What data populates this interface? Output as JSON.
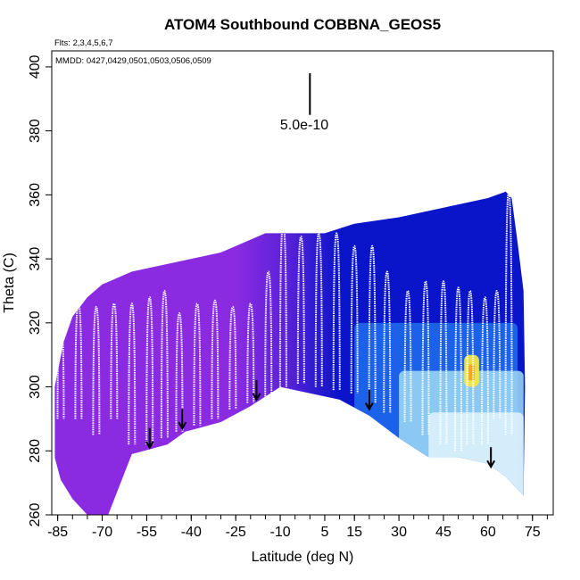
{
  "chart_data": {
    "type": "heatmap",
    "title": "ATOM4 Southbound COBBNA_GEOS5",
    "xlabel": "Latitude (deg N)",
    "ylabel": "Theta (C)",
    "flights_note": "Flts: 2,3,4,5,6,7",
    "dates_note": "MMDD: 0427,0429,0501,0503,0506,0509",
    "scale_label": "5.0e-10",
    "xlim": [
      -87,
      82
    ],
    "ylim": [
      260,
      405
    ],
    "x_ticks": [
      -85,
      -70,
      -55,
      -40,
      -25,
      -10,
      5,
      15,
      30,
      45,
      60,
      75
    ],
    "x_tick_labels": [
      "-85",
      "-70",
      "-55",
      "-40",
      "-25",
      "-10",
      "5",
      "15",
      "30",
      "45",
      "60",
      "75"
    ],
    "x_minor_step": 5,
    "y_ticks": [
      260,
      280,
      300,
      320,
      340,
      360,
      380,
      400
    ],
    "y_tick_labels": [
      "260",
      "280",
      "300",
      "320",
      "340",
      "360",
      "380",
      "400"
    ],
    "grid": false,
    "colors": {
      "violet": "#8a2be2",
      "navy": "#0a14c8",
      "blue": "#1e6ef0",
      "sky": "#9fdcf5",
      "pale": "#dff3fb",
      "yellow": "#f5e642",
      "orange": "#f5a623",
      "track": "#ffffff",
      "arrow": "#000000"
    },
    "field_top_theta": [
      [
        -86,
        300
      ],
      [
        -83,
        314
      ],
      [
        -80,
        322
      ],
      [
        -75,
        328
      ],
      [
        -70,
        332
      ],
      [
        -60,
        336
      ],
      [
        -50,
        338
      ],
      [
        -40,
        340
      ],
      [
        -30,
        342
      ],
      [
        -25,
        344
      ],
      [
        -15,
        348
      ],
      [
        -5,
        348
      ],
      [
        5,
        348
      ],
      [
        15,
        351
      ],
      [
        30,
        353
      ],
      [
        45,
        356
      ],
      [
        60,
        359
      ],
      [
        66,
        361
      ],
      [
        68,
        359
      ],
      [
        70,
        345
      ],
      [
        72,
        330
      ],
      [
        72.5,
        300
      ]
    ],
    "field_bottom_theta": [
      [
        -86,
        278
      ],
      [
        -84,
        271
      ],
      [
        -80,
        265
      ],
      [
        -75,
        260
      ],
      [
        -68,
        260
      ],
      [
        -60,
        279
      ],
      [
        -52,
        281
      ],
      [
        -48,
        282
      ],
      [
        -42,
        286
      ],
      [
        -38,
        287
      ],
      [
        -30,
        289
      ],
      [
        -20,
        294
      ],
      [
        -10,
        300
      ],
      [
        0,
        298
      ],
      [
        10,
        296
      ],
      [
        20,
        291
      ],
      [
        30,
        284
      ],
      [
        40,
        278
      ],
      [
        50,
        278
      ],
      [
        60,
        276
      ],
      [
        66,
        272
      ],
      [
        72,
        266
      ],
      [
        72.5,
        300
      ]
    ],
    "color_zones": [
      {
        "color": "violet",
        "from_lat": -86,
        "to_lat": -12
      },
      {
        "color": "navy",
        "from_lat": -12,
        "to_lat": 70
      },
      {
        "color": "blue",
        "from_lat": 15,
        "to_lat": 70,
        "theta_max": 320
      },
      {
        "color": "sky",
        "from_lat": 30,
        "to_lat": 72,
        "theta_max": 305
      },
      {
        "color": "pale",
        "from_lat": 40,
        "to_lat": 72,
        "theta_max": 292
      },
      {
        "color": "yellow",
        "from_lat": 52,
        "to_lat": 57,
        "theta_min": 300,
        "theta_max": 310
      }
    ],
    "profiles": [
      {
        "lat": -84,
        "top": 320,
        "bottom": 290
      },
      {
        "lat": -78,
        "top": 326,
        "bottom": 290
      },
      {
        "lat": -72,
        "top": 325,
        "bottom": 285
      },
      {
        "lat": -66,
        "top": 326,
        "bottom": 290
      },
      {
        "lat": -60,
        "top": 326,
        "bottom": 282
      },
      {
        "lat": -54,
        "top": 328,
        "bottom": 282
      },
      {
        "lat": -49,
        "top": 330,
        "bottom": 284
      },
      {
        "lat": -44,
        "top": 323,
        "bottom": 286
      },
      {
        "lat": -38,
        "top": 326,
        "bottom": 288
      },
      {
        "lat": -32,
        "top": 327,
        "bottom": 290
      },
      {
        "lat": -26,
        "top": 325,
        "bottom": 293
      },
      {
        "lat": -20,
        "top": 326,
        "bottom": 295
      },
      {
        "lat": -14,
        "top": 336,
        "bottom": 297
      },
      {
        "lat": -9,
        "top": 351,
        "bottom": 300
      },
      {
        "lat": -3,
        "top": 347,
        "bottom": 301
      },
      {
        "lat": 3,
        "top": 348,
        "bottom": 300
      },
      {
        "lat": 9,
        "top": 348,
        "bottom": 299
      },
      {
        "lat": 15,
        "top": 344,
        "bottom": 298
      },
      {
        "lat": 21,
        "top": 344,
        "bottom": 295
      },
      {
        "lat": 26,
        "top": 336,
        "bottom": 292
      },
      {
        "lat": 33,
        "top": 330,
        "bottom": 289
      },
      {
        "lat": 39,
        "top": 333,
        "bottom": 285
      },
      {
        "lat": 45,
        "top": 333,
        "bottom": 282
      },
      {
        "lat": 50,
        "top": 331,
        "bottom": 280
      },
      {
        "lat": 54,
        "top": 330,
        "bottom": 282
      },
      {
        "lat": 59,
        "top": 328,
        "bottom": 282
      },
      {
        "lat": 63,
        "top": 330,
        "bottom": 290
      },
      {
        "lat": 67,
        "top": 361,
        "bottom": 285
      }
    ],
    "arrows": [
      {
        "lat": -54,
        "theta_tip": 281
      },
      {
        "lat": -43,
        "theta_tip": 287
      },
      {
        "lat": -18,
        "theta_tip": 296
      },
      {
        "lat": 20,
        "theta_tip": 293
      },
      {
        "lat": 61,
        "theta_tip": 275
      }
    ],
    "scale_bar": {
      "lat": 0,
      "theta_top": 398,
      "theta_bottom": 385
    }
  }
}
